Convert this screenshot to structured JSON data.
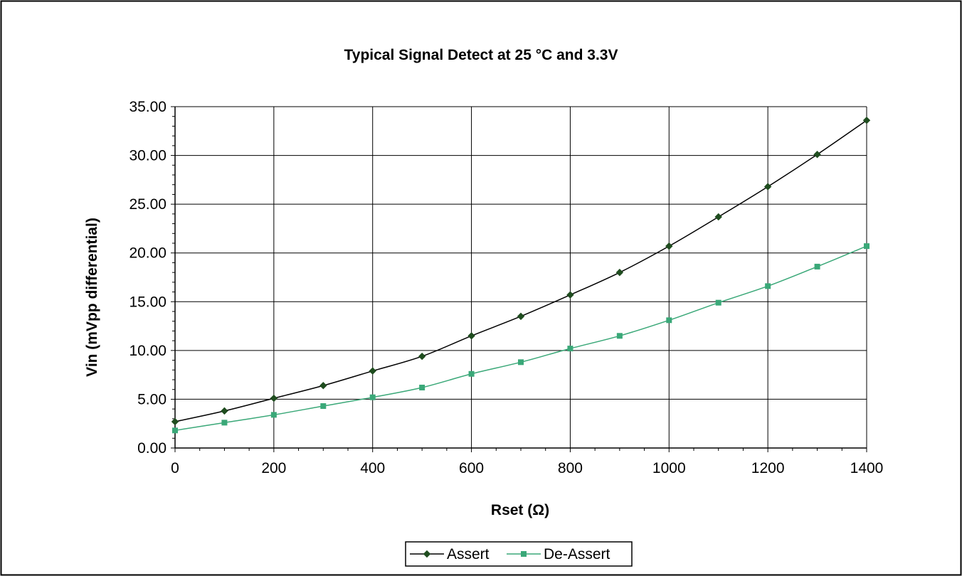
{
  "chart_data": {
    "type": "line",
    "title": "Typical Signal Detect at 25 °C and 3.3V",
    "xlabel": "Rset (Ω)",
    "ylabel": "Vin (mVpp differential)",
    "xlim": [
      0,
      1400
    ],
    "ylim": [
      0,
      35
    ],
    "x_ticks": [
      0,
      200,
      400,
      600,
      800,
      1000,
      1200,
      1400
    ],
    "x_tick_labels": [
      "0",
      "200",
      "400",
      "600",
      "800",
      "1000",
      "1200",
      "1400"
    ],
    "y_ticks": [
      0,
      5,
      10,
      15,
      20,
      25,
      30,
      35
    ],
    "y_tick_labels": [
      "0.00",
      "5.00",
      "10.00",
      "15.00",
      "20.00",
      "25.00",
      "30.00",
      "35.00"
    ],
    "grid": true,
    "legend_position": "bottom",
    "x": [
      0,
      100,
      200,
      300,
      400,
      500,
      600,
      700,
      800,
      900,
      1000,
      1100,
      1200,
      1300,
      1400
    ],
    "series": [
      {
        "name": "Assert",
        "color": "#000000",
        "marker_color": "#1f4d1f",
        "marker": "diamond",
        "values": [
          2.7,
          3.8,
          5.1,
          6.4,
          7.9,
          9.4,
          11.5,
          13.5,
          15.7,
          18.0,
          20.7,
          23.7,
          26.8,
          30.1,
          33.6
        ]
      },
      {
        "name": "De-Assert",
        "color": "#3aa878",
        "marker_color": "#3aa878",
        "marker": "square",
        "values": [
          1.8,
          2.6,
          3.4,
          4.3,
          5.2,
          6.2,
          7.6,
          8.8,
          10.2,
          11.5,
          13.1,
          14.9,
          16.6,
          18.6,
          20.7
        ]
      }
    ]
  }
}
